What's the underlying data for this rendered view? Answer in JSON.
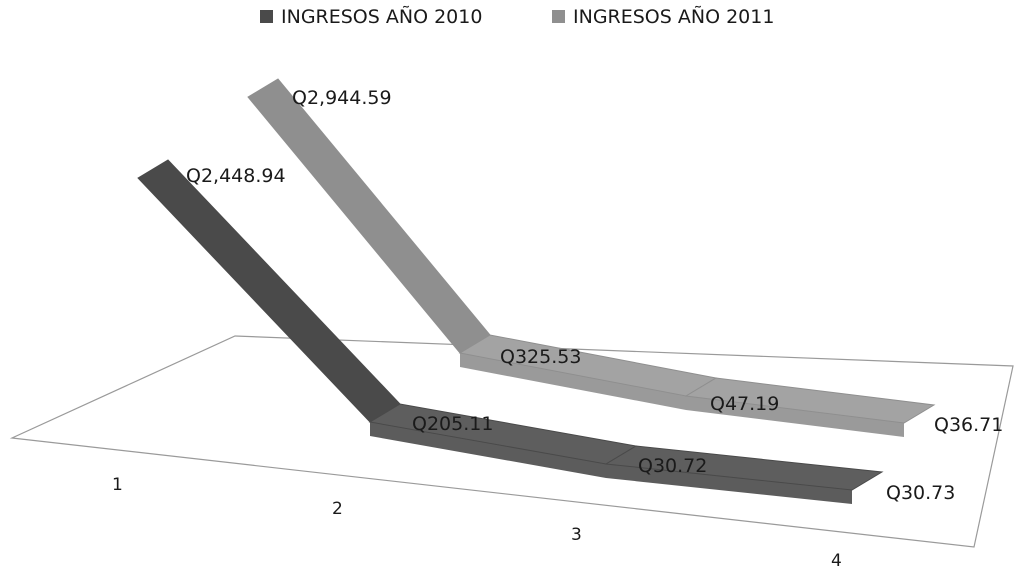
{
  "chart_data": {
    "type": "line",
    "subtype": "3d-ribbon",
    "categories": [
      "1",
      "2",
      "3",
      "4"
    ],
    "series": [
      {
        "name": "INGRESOS AÑO 2010",
        "values": [
          2448.94,
          205.11,
          30.72,
          30.73
        ],
        "labels": [
          "Q2,448.94",
          "Q205.11",
          "Q30.72",
          "Q30.73"
        ],
        "color": "#4a4a4a",
        "highlight": "#5e5e5e"
      },
      {
        "name": "INGRESOS AÑO 2011",
        "values": [
          2944.59,
          325.53,
          47.19,
          36.71
        ],
        "labels": [
          "Q2,944.59",
          "Q325.53",
          "Q47.19",
          "Q36.71"
        ],
        "color": "#8f8f8f",
        "highlight": "#a3a3a3"
      }
    ],
    "legend_position": "top",
    "grid": false
  }
}
